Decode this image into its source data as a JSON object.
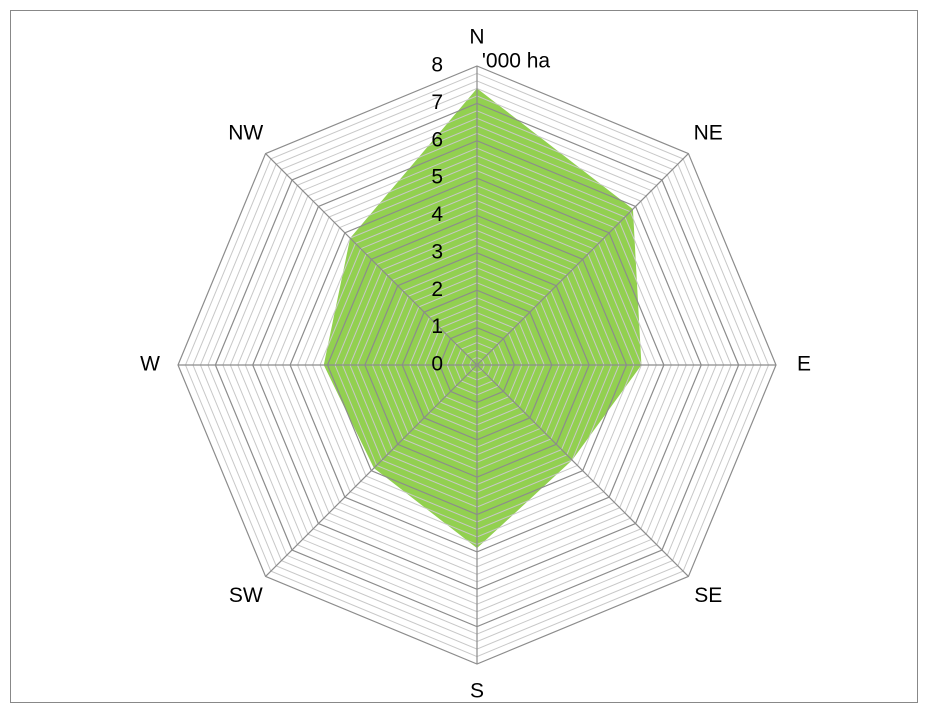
{
  "chart_data": {
    "type": "radar",
    "axis_label": "'000 ha",
    "categories": [
      "N",
      "NE",
      "E",
      "SE",
      "S",
      "SW",
      "W",
      "NW"
    ],
    "values": [
      7.4,
      5.9,
      4.4,
      3.6,
      4.9,
      3.9,
      4.1,
      4.8
    ],
    "color": "#92d050",
    "ylim": [
      0,
      8
    ],
    "yticks": [
      0,
      1,
      2,
      3,
      4,
      5,
      6,
      7,
      8
    ],
    "grid": true
  }
}
